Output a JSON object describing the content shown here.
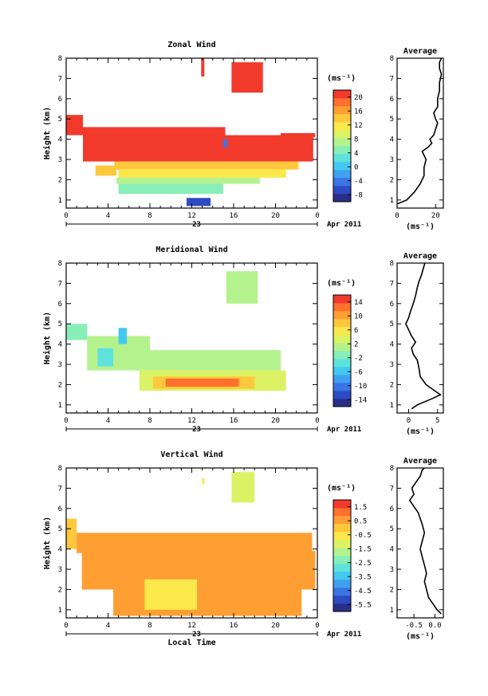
{
  "colors": {
    "scale": [
      "#2a2f86",
      "#2d4bc2",
      "#3b74e4",
      "#3fa0f0",
      "#43c9ef",
      "#5fe2dc",
      "#88eeb8",
      "#b4f28e",
      "#dcf265",
      "#fbe84a",
      "#ffc83c",
      "#ff9f33",
      "#ff6f2e",
      "#f23a2c"
    ],
    "frame": "#000000",
    "background": "#ffffff"
  },
  "chart_data": [
    {
      "type": "heatmap",
      "title": "Zonal Wind",
      "xlabel": "",
      "ylabel": "Height (km)",
      "x_ticks": [
        "0",
        "4",
        "8",
        "12",
        "16",
        "20",
        "0"
      ],
      "y_ticks": [
        "1",
        "2",
        "3",
        "4",
        "5",
        "6",
        "7",
        "8"
      ],
      "xlim": [
        0,
        24
      ],
      "ylim": [
        0.6,
        8
      ],
      "date_label": "23",
      "month_label": "Apr 2011",
      "colorbar": {
        "unit_label": "(ms⁻¹)",
        "ticks": [
          "20",
          "16",
          "12",
          "8",
          "4",
          "0",
          "-4",
          "-8"
        ],
        "range": [
          -10,
          22
        ]
      },
      "regions": [
        {
          "x": [
            12.9,
            13.2
          ],
          "y": [
            7.1,
            8.0
          ],
          "v": 21
        },
        {
          "x": [
            15.8,
            18.8
          ],
          "y": [
            6.3,
            7.8
          ],
          "v": 21
        },
        {
          "x": [
            0.0,
            1.6
          ],
          "y": [
            4.2,
            5.2
          ],
          "v": 21
        },
        {
          "x": [
            1.6,
            15.2
          ],
          "y": [
            2.9,
            4.6
          ],
          "v": 21
        },
        {
          "x": [
            15.2,
            23.6
          ],
          "y": [
            2.9,
            4.2
          ],
          "v": 21
        },
        {
          "x": [
            20.5,
            23.8
          ],
          "y": [
            4.1,
            4.3
          ],
          "v": 21
        },
        {
          "x": [
            2.8,
            4.8
          ],
          "y": [
            2.2,
            2.7
          ],
          "v": 15
        },
        {
          "x": [
            4.6,
            22.2
          ],
          "y": [
            2.5,
            2.9
          ],
          "v": 15
        },
        {
          "x": [
            5.0,
            21.0
          ],
          "y": [
            2.1,
            2.5
          ],
          "v": 11
        },
        {
          "x": [
            4.8,
            18.5
          ],
          "y": [
            1.8,
            2.1
          ],
          "v": 8
        },
        {
          "x": [
            5.0,
            15.0
          ],
          "y": [
            1.3,
            1.8
          ],
          "v": 5
        },
        {
          "x": [
            11.5,
            13.8
          ],
          "y": [
            0.7,
            1.1
          ],
          "v": -6
        },
        {
          "x": [
            15.0,
            15.4
          ],
          "y": [
            3.6,
            4.0
          ],
          "v": -4
        }
      ],
      "average_profile": {
        "title": "Average",
        "xlabel": "(ms⁻¹)",
        "x_ticks": [
          "0",
          "20"
        ],
        "xlim": [
          0,
          24
        ],
        "x": [
          0,
          5,
          9,
          12,
          14,
          14,
          15,
          14,
          13,
          16,
          18,
          17,
          19,
          20,
          21,
          20,
          19,
          21,
          21,
          22,
          22,
          23,
          22,
          22,
          23
        ],
        "y": [
          0.8,
          1.0,
          1.4,
          1.8,
          2.2,
          2.6,
          3.0,
          3.2,
          3.4,
          3.6,
          3.8,
          4.0,
          4.2,
          4.5,
          4.8,
          5.0,
          5.3,
          5.6,
          6.0,
          6.4,
          6.8,
          7.2,
          7.5,
          7.8,
          8.0
        ]
      }
    },
    {
      "type": "heatmap",
      "title": "Meridional Wind",
      "xlabel": "",
      "ylabel": "Height (km)",
      "x_ticks": [
        "0",
        "4",
        "8",
        "12",
        "16",
        "20",
        "0"
      ],
      "y_ticks": [
        "1",
        "2",
        "3",
        "4",
        "5",
        "6",
        "7",
        "8"
      ],
      "xlim": [
        0,
        24
      ],
      "ylim": [
        0.6,
        8
      ],
      "date_label": "23",
      "month_label": "Apr 2011",
      "colorbar": {
        "unit_label": "(ms⁻¹)",
        "ticks": [
          "14",
          "10",
          "6",
          "2",
          "-2",
          "-6",
          "-10",
          "-14"
        ],
        "range": [
          -16,
          16
        ]
      },
      "regions": [
        {
          "x": [
            15.3,
            18.3
          ],
          "y": [
            6.0,
            7.6
          ],
          "v": 1
        },
        {
          "x": [
            0.0,
            2.0
          ],
          "y": [
            4.2,
            5.0
          ],
          "v": -1
        },
        {
          "x": [
            2.0,
            8.0
          ],
          "y": [
            2.7,
            4.4
          ],
          "v": 0
        },
        {
          "x": [
            7.5,
            20.5
          ],
          "y": [
            2.7,
            3.7
          ],
          "v": 0
        },
        {
          "x": [
            3.0,
            4.5
          ],
          "y": [
            2.9,
            3.8
          ],
          "v": -3
        },
        {
          "x": [
            5.0,
            5.8
          ],
          "y": [
            4.0,
            4.8
          ],
          "v": -5
        },
        {
          "x": [
            7.0,
            21.0
          ],
          "y": [
            1.7,
            2.7
          ],
          "v": 4
        },
        {
          "x": [
            8.3,
            18.0
          ],
          "y": [
            1.8,
            2.4
          ],
          "v": 8
        },
        {
          "x": [
            9.5,
            16.5
          ],
          "y": [
            1.9,
            2.3
          ],
          "v": 12
        }
      ],
      "average_profile": {
        "title": "Average",
        "xlabel": "(ms⁻¹)",
        "x_ticks": [
          "0",
          "5"
        ],
        "xlim": [
          -2,
          6
        ],
        "x": [
          0.5,
          1.5,
          4.0,
          5.5,
          4.5,
          3.0,
          2.0,
          1.8,
          1.5,
          0.8,
          0.5,
          1.2,
          0.5,
          0.0,
          -0.5,
          0.0,
          0.3,
          0.8,
          1.2,
          1.5,
          1.8,
          2.2,
          2.5,
          2.8
        ],
        "y": [
          0.8,
          1.0,
          1.3,
          1.5,
          1.7,
          2.0,
          2.4,
          2.8,
          3.2,
          3.5,
          3.8,
          4.1,
          4.4,
          4.7,
          5.0,
          5.3,
          5.6,
          6.0,
          6.4,
          6.8,
          7.1,
          7.4,
          7.7,
          8.0
        ]
      }
    },
    {
      "type": "heatmap",
      "title": "Vertical Wind",
      "xlabel": "Local Time",
      "ylabel": "Height (km)",
      "x_ticks": [
        "0",
        "4",
        "8",
        "12",
        "16",
        "20",
        "0"
      ],
      "y_ticks": [
        "1",
        "2",
        "3",
        "4",
        "5",
        "6",
        "7",
        "8"
      ],
      "xlim": [
        0,
        24
      ],
      "ylim": [
        0.6,
        8
      ],
      "date_label": "23",
      "month_label": "Apr 2011",
      "colorbar": {
        "unit_label": "(ms⁻¹)",
        "ticks": [
          "1.5",
          "0.5",
          "-0.5",
          "-1.5",
          "-2.5",
          "-3.5",
          "-4.5",
          "-5.5"
        ],
        "range": [
          -6,
          2
        ]
      },
      "regions": [
        {
          "x": [
            15.8,
            18.0
          ],
          "y": [
            6.3,
            7.8
          ],
          "v": -1.2
        },
        {
          "x": [
            13.0,
            13.2
          ],
          "y": [
            7.2,
            7.5
          ],
          "v": -0.8
        },
        {
          "x": [
            0.0,
            1.0
          ],
          "y": [
            4.0,
            5.5
          ],
          "v": 0.2
        },
        {
          "x": [
            1.0,
            23.5
          ],
          "y": [
            3.8,
            4.8
          ],
          "v": 0.3
        },
        {
          "x": [
            1.5,
            23.8
          ],
          "y": [
            2.0,
            3.9
          ],
          "v": 0.4
        },
        {
          "x": [
            4.5,
            22.5
          ],
          "y": [
            0.7,
            2.1
          ],
          "v": 0.3
        },
        {
          "x": [
            7.5,
            12.5
          ],
          "y": [
            1.0,
            2.5
          ],
          "v": -0.3
        },
        {
          "x": [
            19.0,
            21.5
          ],
          "y": [
            0.8,
            1.6
          ],
          "v": 0.8
        }
      ],
      "average_profile": {
        "title": "Average",
        "xlabel": "(ms⁻¹)",
        "x_ticks": [
          "-0.5",
          "0.0"
        ],
        "xlim": [
          -0.9,
          0.2
        ],
        "x": [
          0.15,
          0.05,
          -0.05,
          -0.15,
          -0.2,
          -0.25,
          -0.2,
          -0.25,
          -0.3,
          -0.35,
          -0.3,
          -0.25,
          -0.3,
          -0.35,
          -0.4,
          -0.5,
          -0.6,
          -0.5,
          -0.55,
          -0.45,
          -0.35,
          -0.3,
          -0.25
        ],
        "y": [
          0.8,
          1.0,
          1.3,
          1.6,
          2.0,
          2.4,
          2.8,
          3.2,
          3.6,
          4.0,
          4.4,
          4.8,
          5.2,
          5.5,
          5.8,
          6.1,
          6.4,
          6.7,
          7.0,
          7.3,
          7.6,
          7.9,
          8.0
        ]
      }
    }
  ]
}
